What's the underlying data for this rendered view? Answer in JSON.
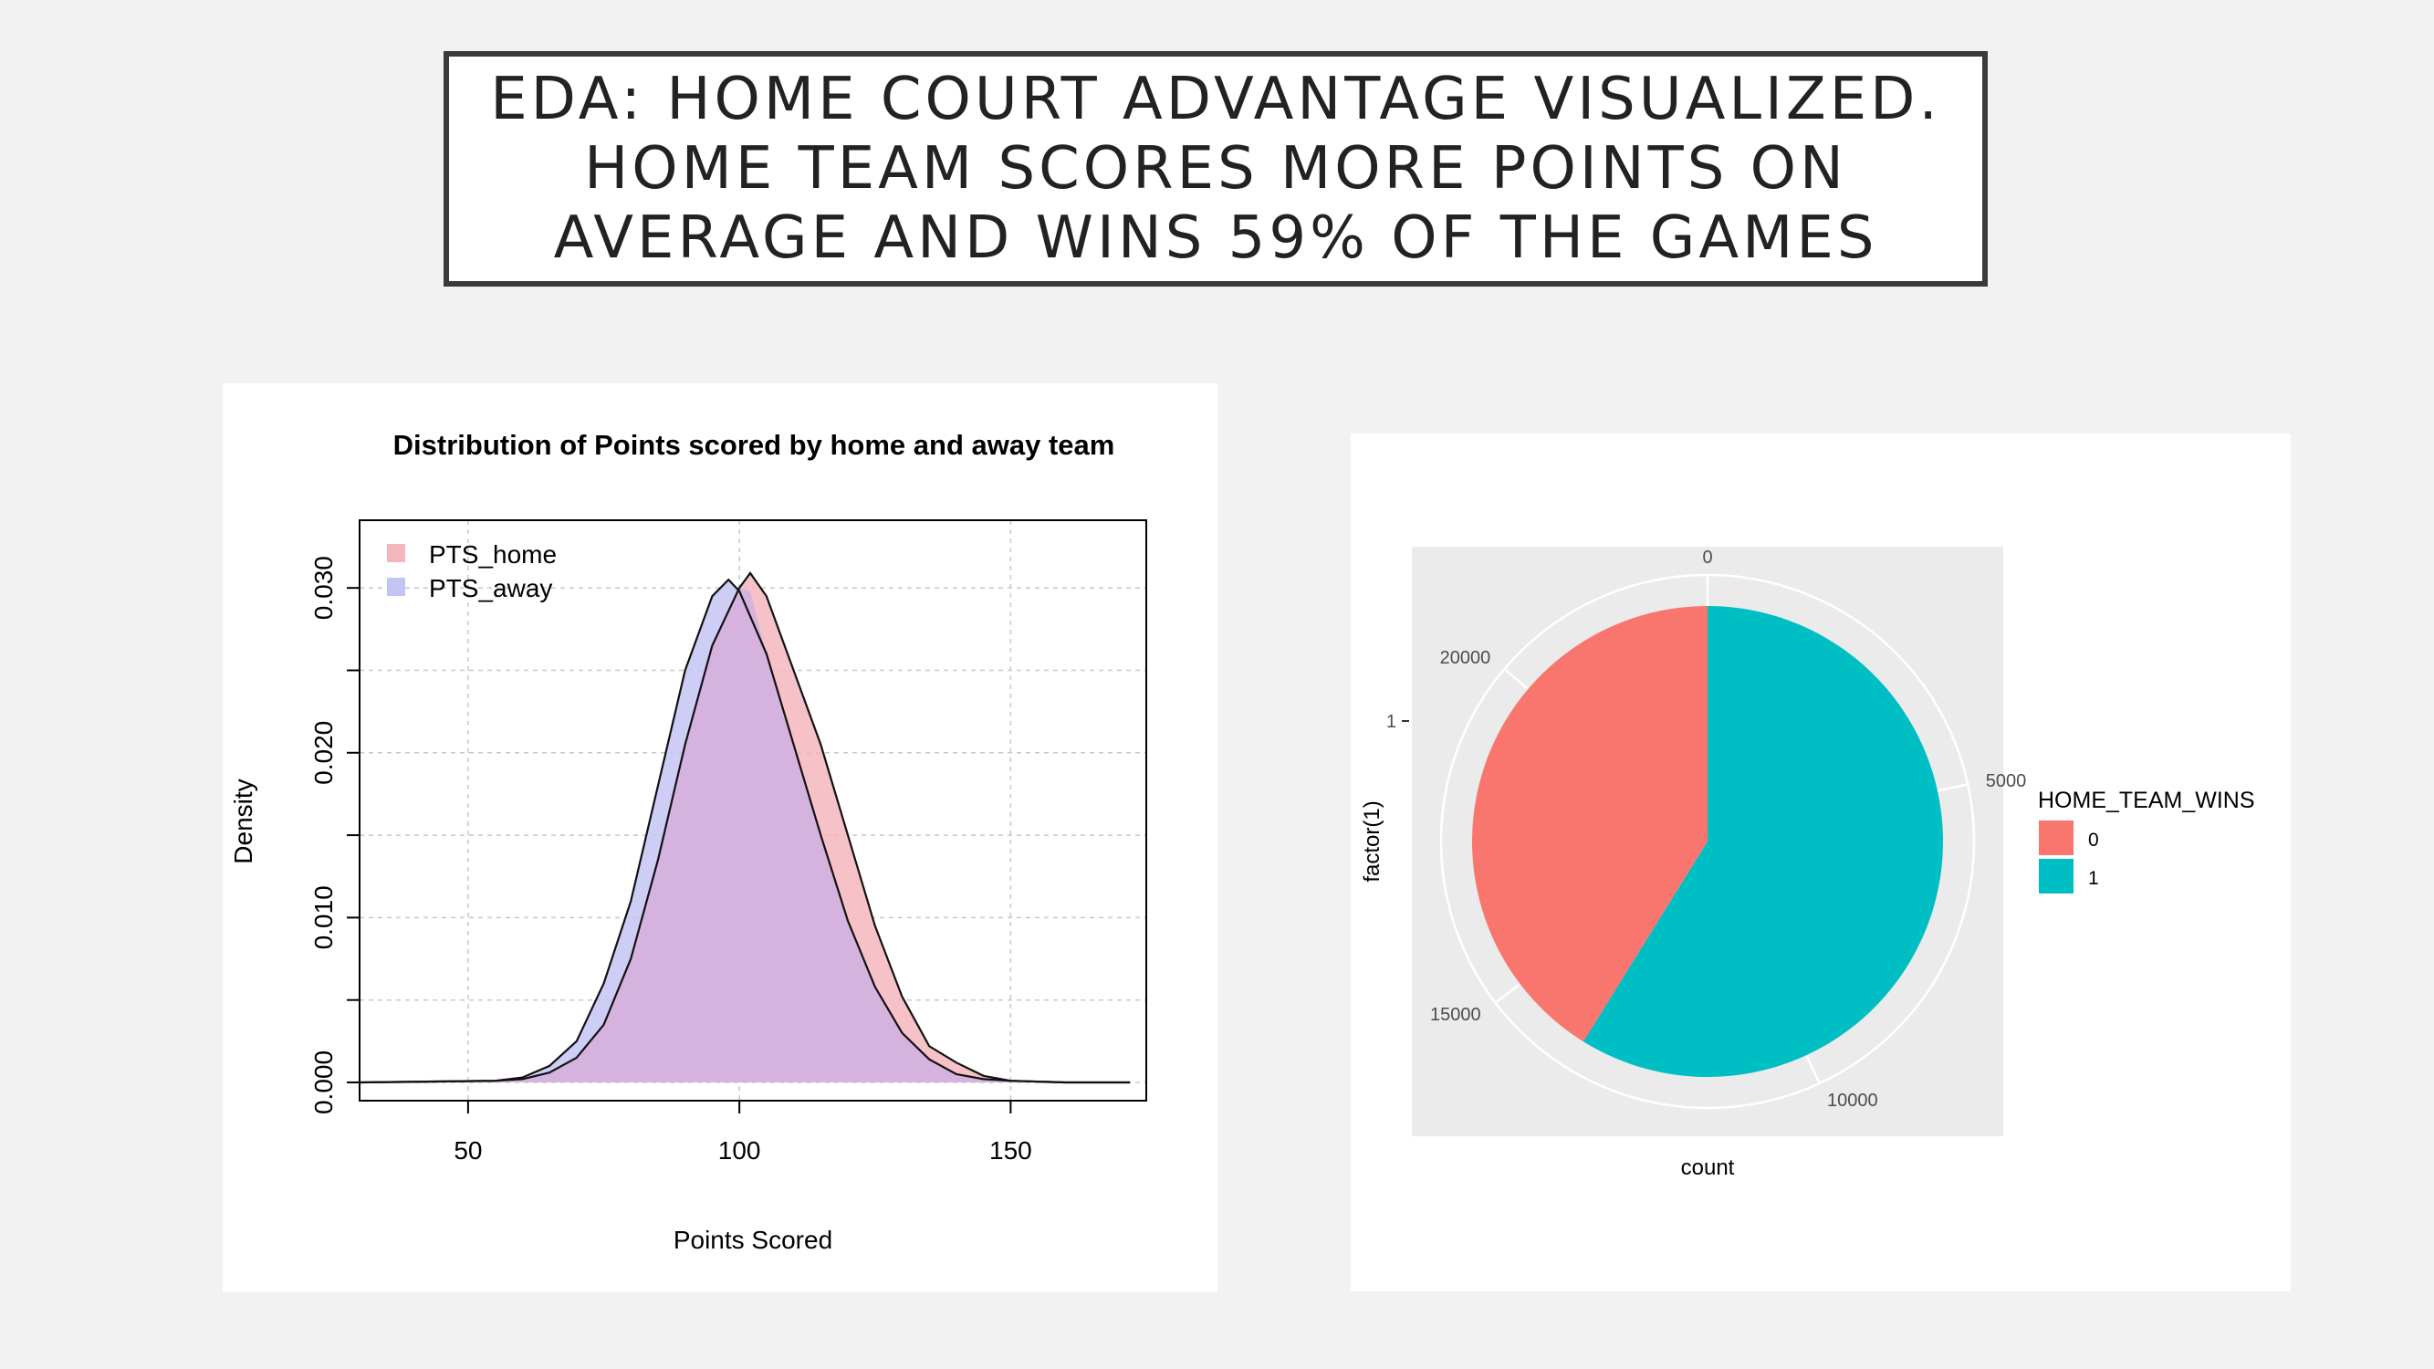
{
  "slide": {
    "title_lines": [
      "EDA: HOME COURT ADVANTAGE VISUALIZED.",
      "HOME TEAM SCORES MORE POINTS ON",
      "AVERAGE AND WINS 59% OF THE GAMES"
    ]
  },
  "colors": {
    "home_fill": "#f4b6bd",
    "away_fill": "#c4c4f4",
    "overlap_fill": "#d6b3df",
    "pie_0": "#f8766d",
    "pie_1": "#00bfc4",
    "panel_bg": "#ebebeb"
  },
  "chart_data": [
    {
      "type": "area",
      "title": "Distribution of Points scored by home and away team",
      "xlabel": "Points Scored",
      "ylabel": "Density",
      "xlim": [
        30,
        175
      ],
      "ylim": [
        0,
        0.032
      ],
      "x_ticks": [
        50,
        100,
        150
      ],
      "y_ticks": [
        0.0,
        0.01,
        0.02,
        0.03
      ],
      "y_tick_labels": [
        "0.000",
        "0.010",
        "0.020",
        "0.030"
      ],
      "grid": true,
      "legend_position": "top-left",
      "series": [
        {
          "name": "PTS_home",
          "x": [
            30,
            55,
            60,
            65,
            70,
            75,
            80,
            85,
            90,
            95,
            100,
            102,
            105,
            110,
            115,
            120,
            125,
            130,
            135,
            140,
            145,
            150,
            160,
            172
          ],
          "y": [
            0,
            0.0001,
            0.0002,
            0.0006,
            0.0015,
            0.0035,
            0.0075,
            0.0135,
            0.0205,
            0.0265,
            0.03,
            0.0309,
            0.0295,
            0.025,
            0.0205,
            0.015,
            0.0095,
            0.0052,
            0.0022,
            0.0012,
            0.0004,
            0.0001,
            0,
            0
          ]
        },
        {
          "name": "PTS_away",
          "x": [
            30,
            55,
            60,
            65,
            70,
            75,
            80,
            85,
            90,
            95,
            98,
            100,
            105,
            110,
            115,
            120,
            125,
            130,
            135,
            140,
            145,
            150,
            160,
            172
          ],
          "y": [
            0,
            0.0001,
            0.0003,
            0.001,
            0.0025,
            0.006,
            0.011,
            0.018,
            0.025,
            0.0295,
            0.0305,
            0.0298,
            0.026,
            0.0205,
            0.015,
            0.0098,
            0.0058,
            0.003,
            0.0014,
            0.0005,
            0.0002,
            0.0001,
            0,
            0
          ]
        }
      ]
    },
    {
      "type": "pie",
      "xlabel": "count",
      "ylabel": "factor(1)",
      "y_tick_label": "1",
      "radial_ticks": [
        0,
        5000,
        10000,
        15000,
        20000
      ],
      "radial_tick_labels": [
        "0",
        "5000",
        "10000",
        "15000",
        "20000"
      ],
      "total": 23200,
      "legend_title": "HOME_TEAM_WINS",
      "categories": [
        "0",
        "1"
      ],
      "values": [
        9550,
        13650
      ]
    }
  ]
}
